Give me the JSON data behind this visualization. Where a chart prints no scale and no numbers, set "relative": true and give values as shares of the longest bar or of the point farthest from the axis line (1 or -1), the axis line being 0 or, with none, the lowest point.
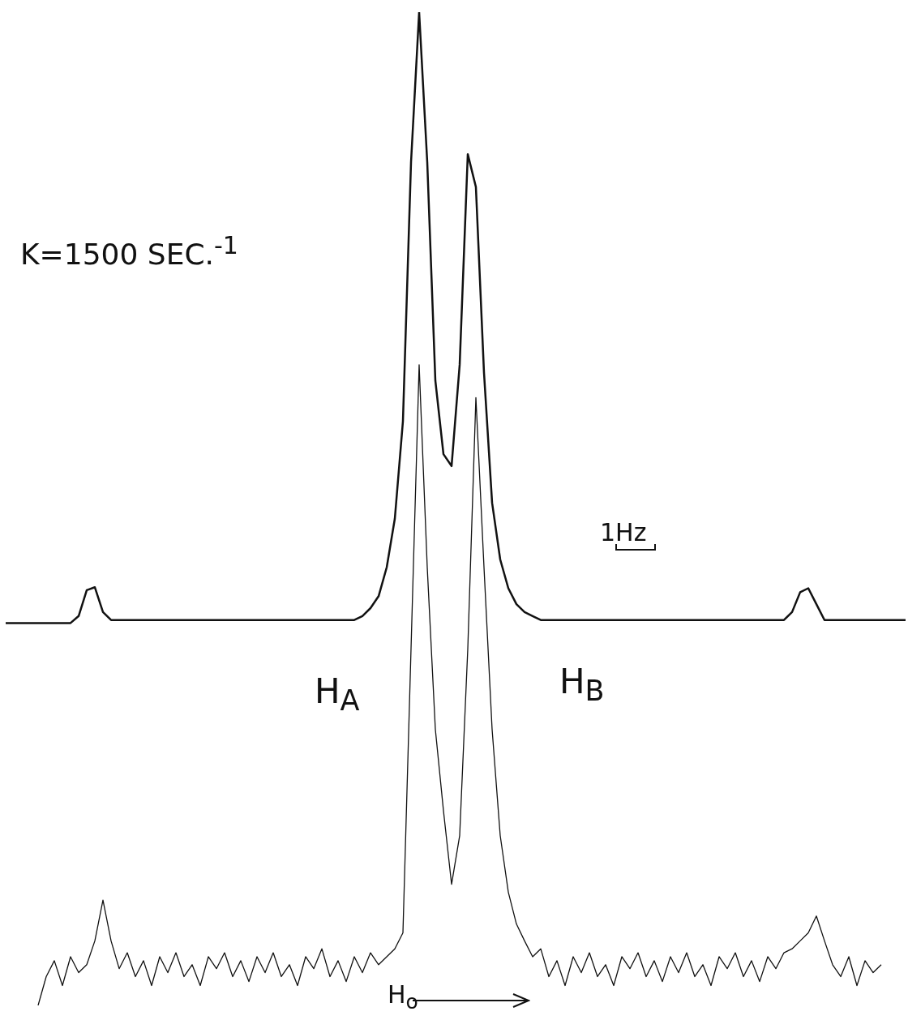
{
  "chart_data": {
    "type": "line",
    "relative": true,
    "marker": "none",
    "categories": [
      null,
      null,
      null,
      null,
      null,
      null,
      null,
      null,
      null,
      null,
      null,
      null,
      null,
      null,
      null,
      null,
      null,
      null,
      null,
      null,
      null,
      null,
      null,
      null,
      null,
      null,
      null,
      null,
      null,
      null,
      null,
      null,
      null,
      null,
      null,
      null,
      null,
      null,
      null,
      null,
      null,
      null,
      null,
      null,
      null,
      null,
      null,
      null,
      null,
      null,
      null,
      null,
      null,
      null,
      null,
      null,
      null,
      null,
      null,
      null,
      null,
      null,
      null,
      null,
      null,
      null,
      null,
      null,
      null,
      null,
      null,
      null,
      null,
      null,
      null,
      null,
      null,
      null,
      null,
      null,
      null,
      null,
      null,
      null,
      null,
      null,
      null,
      null,
      null,
      null,
      null,
      null,
      null,
      null,
      null,
      null,
      null,
      null,
      null,
      null,
      null,
      null,
      null,
      null,
      null,
      null,
      null,
      null,
      null,
      null,
      null,
      null
    ],
    "series": [
      {
        "color": "#111111",
        "values": [
          0.385,
          0.385,
          0.385,
          0.385,
          0.385,
          0.385,
          0.385,
          0.385,
          0.385,
          0.392,
          0.418,
          0.421,
          0.396,
          0.388,
          0.388,
          0.388,
          0.388,
          0.388,
          0.388,
          0.388,
          0.388,
          0.388,
          0.388,
          0.388,
          0.388,
          0.388,
          0.388,
          0.388,
          0.388,
          0.388,
          0.388,
          0.388,
          0.388,
          0.388,
          0.388,
          0.388,
          0.388,
          0.388,
          0.388,
          0.388,
          0.388,
          0.388,
          0.388,
          0.388,
          0.392,
          0.4,
          0.412,
          0.441,
          0.49,
          0.588,
          0.849,
          1,
          0.849,
          0.629,
          0.555,
          0.543,
          0.645,
          0.857,
          0.824,
          0.637,
          0.506,
          0.449,
          0.42,
          0.404,
          0.396,
          0.392,
          0.388,
          0.388,
          0.388,
          0.388,
          0.388,
          0.388,
          0.388,
          0.388,
          0.388,
          0.388,
          0.388,
          0.388,
          0.388,
          0.388,
          0.388,
          0.388,
          0.388,
          0.388,
          0.388,
          0.388,
          0.388,
          0.388,
          0.388,
          0.388,
          0.388,
          0.388,
          0.388,
          0.388,
          0.388,
          0.388,
          0.388,
          0.396,
          0.416,
          0.42,
          0.404,
          0.388,
          0.388,
          0.388,
          0.388,
          0.388,
          0.388,
          0.388,
          0.388,
          0.388,
          0.388,
          0.388
        ]
      },
      {
        "color": "#111111",
        "values": [
          null,
          null,
          null,
          null,
          0,
          0.029,
          0.045,
          0.02,
          0.049,
          0.033,
          0.041,
          0.065,
          0.106,
          0.065,
          0.037,
          0.053,
          0.029,
          0.045,
          0.02,
          0.049,
          0.033,
          0.053,
          0.029,
          0.041,
          0.02,
          0.049,
          0.037,
          0.053,
          0.029,
          0.045,
          0.024,
          0.049,
          0.033,
          0.053,
          0.029,
          0.041,
          0.02,
          0.049,
          0.037,
          0.057,
          0.029,
          0.045,
          0.024,
          0.049,
          0.033,
          0.053,
          0.041,
          0.049,
          0.057,
          0.073,
          0.359,
          0.645,
          0.441,
          0.278,
          0.196,
          0.122,
          0.171,
          0.359,
          0.612,
          0.441,
          0.278,
          0.171,
          0.114,
          0.082,
          0.065,
          0.049,
          0.057,
          0.029,
          0.045,
          0.02,
          0.049,
          0.033,
          0.053,
          0.029,
          0.041,
          0.02,
          0.049,
          0.037,
          0.053,
          0.029,
          0.045,
          0.024,
          0.049,
          0.033,
          0.053,
          0.029,
          0.041,
          0.02,
          0.049,
          0.037,
          0.053,
          0.029,
          0.045,
          0.024,
          0.049,
          0.037,
          0.053,
          0.057,
          0.065,
          0.073,
          0.09,
          0.065,
          0.041,
          0.029,
          0.049,
          0.02,
          0.045,
          0.033,
          0.041,
          null,
          null,
          null
        ]
      }
    ],
    "annotations": [
      "K=1500 SEC.$^{-1}$",
      "H$_{A}$",
      "H$_{B}$",
      "1Hz",
      "H$_{o}$"
    ]
  }
}
